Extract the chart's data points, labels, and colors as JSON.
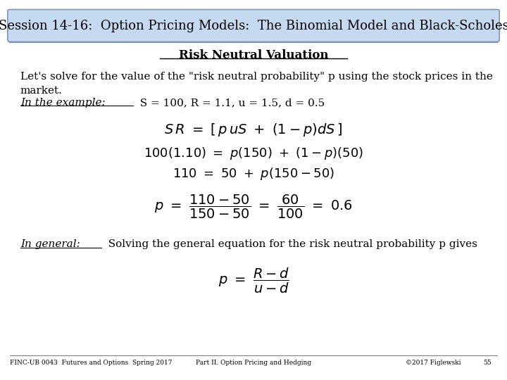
{
  "title": "Session 14-16:  Option Pricing Models:  The Binomial Model and Black-Scholes",
  "title_bg": "#c5d9f1",
  "title_border": "#7f96b2",
  "bg_color": "#ffffff",
  "subtitle": "Risk Neutral Valuation",
  "body_text_1": "Let's solve for the value of the \"risk neutral probability\" p using the stock prices in the\nmarket.",
  "footer_left": "FINC-UB 0043  Futures and Options  Spring 2017",
  "footer_center": "Part II. Option Pricing and Hedging",
  "footer_right": "©2017 Figlewski",
  "footer_page": "55",
  "footer_line_color": "#808080",
  "title_fontsize": 13,
  "body_fontsize": 11
}
